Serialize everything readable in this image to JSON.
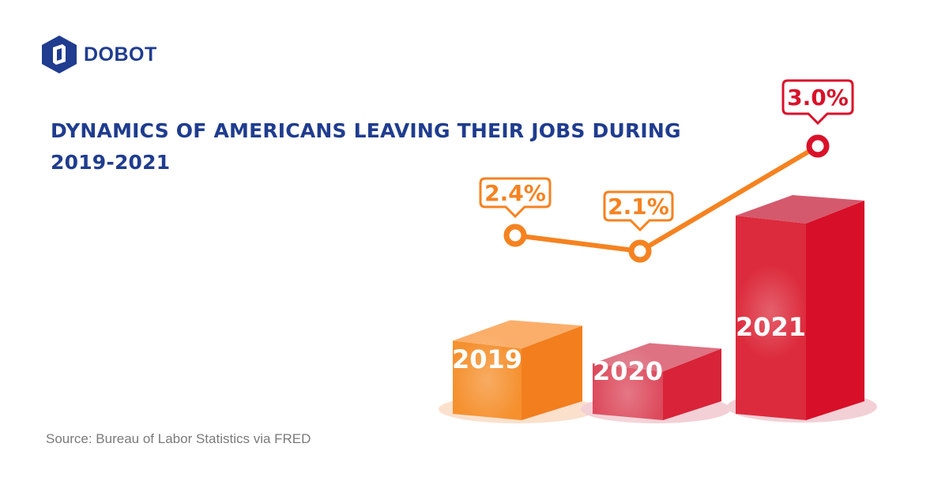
{
  "brand": {
    "name": "DOBOT",
    "color": "#1f3c8f"
  },
  "title": "DYNAMICS OF AMERICANS LEAVING THEIR JOBS DURING 2019-2021",
  "source": "Source: Bureau of Labor Statistics via FRED",
  "chart_data": {
    "type": "bar+line",
    "title": "DYNAMICS OF AMERICANS LEAVING THEIR JOBS DURING 2019-2021",
    "categories": [
      "2019",
      "2020",
      "2021"
    ],
    "values": [
      2.4,
      2.1,
      3.0
    ],
    "value_labels": [
      "2.4%",
      "2.1%",
      "3.0%"
    ],
    "unit": "%",
    "colors": {
      "2019": "#f58220",
      "2020": "#da2a40",
      "2021": "#d9112a",
      "line": "#f58220"
    },
    "grid": false,
    "legend": "none"
  }
}
